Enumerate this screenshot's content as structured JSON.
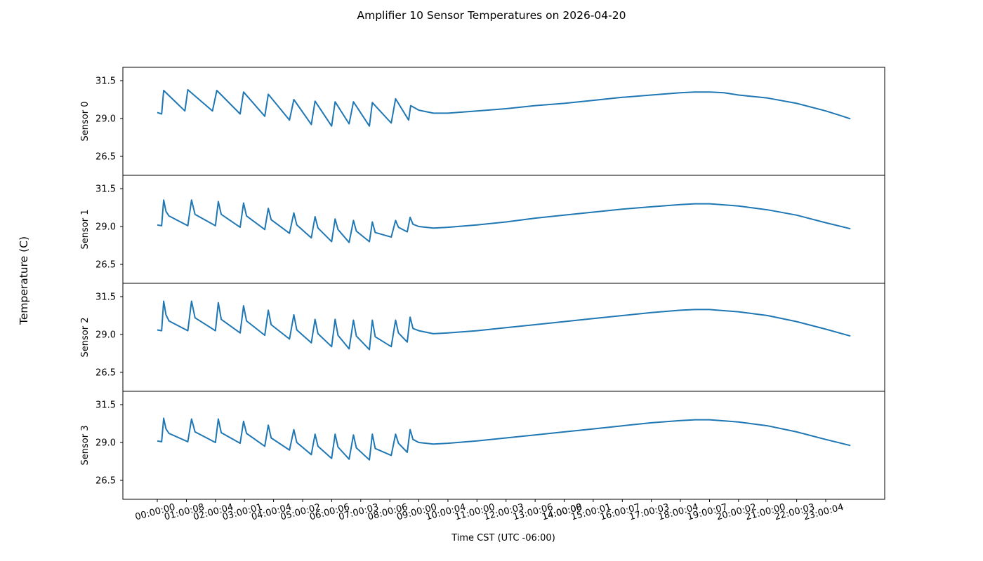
{
  "figure": {
    "title": "Amplifier 10 Sensor Temperatures on 2026-04-20",
    "suptitle_ylabel": "Temperature (C)",
    "xlabel": "Time CST (UTC -06:00)",
    "line_color": "#1f77b4"
  },
  "chart_data": {
    "type": "line",
    "title": "Amplifier 10 Sensor Temperatures on 2026-04-20",
    "xlabel": "Time CST (UTC -06:00)",
    "ylabel": "Temperature (C)",
    "layout": "4 vertically stacked subplots sharing x-axis",
    "ylim": [
      25.25,
      32.38
    ],
    "yticks": [
      26.5,
      29.0,
      31.5
    ],
    "ytick_labels": [
      "26.5",
      "29.0",
      "31.5"
    ],
    "xlim_hours": [
      -1.2,
      25.0
    ],
    "xticks_hours": [
      0,
      1.002,
      2.001,
      3.0,
      4.001,
      5.001,
      6.002,
      7.001,
      8.002,
      9.0,
      10.001,
      11.0,
      12.001,
      13.002,
      14.0,
      14.002,
      15.0,
      16.002,
      17.001,
      18.001,
      19.002,
      20.001,
      21.0,
      22.001,
      23.001
    ],
    "xtick_labels": [
      "00:00:00",
      "01:00:08",
      "02:00:04",
      "03:00:01",
      "04:00:04",
      "05:00:02",
      "06:00:06",
      "07:00:03",
      "08:00:06",
      "09:00:00",
      "10:00:04",
      "11:00:00",
      "12:00:03",
      "13:00:06",
      "14:00:00",
      "14:00:08",
      "15:00:01",
      "16:00:07",
      "17:00:03",
      "18:00:04",
      "19:00:07",
      "20:00:02",
      "21:00:00",
      "22:00:03",
      "23:00:04"
    ],
    "grid": false,
    "legend": null,
    "series": [
      {
        "name": "Sensor 0",
        "ylabel": "Sensor 0",
        "x_hours": [
          0,
          0.15,
          0.22,
          0.95,
          1.05,
          1.9,
          2.05,
          2.85,
          2.97,
          3.7,
          3.82,
          4.55,
          4.7,
          5.3,
          5.43,
          6.0,
          6.12,
          6.6,
          6.75,
          7.3,
          7.4,
          8.05,
          8.2,
          8.65,
          8.72,
          9.0,
          9.5,
          10.0,
          11.0,
          12.0,
          13.0,
          14.0,
          15.0,
          16.0,
          17.0,
          18.0,
          18.5,
          19.0,
          19.5,
          20.0,
          21.0,
          22.0,
          23.0,
          23.5,
          23.85
        ],
        "values": [
          29.4,
          29.3,
          30.85,
          29.5,
          30.9,
          29.5,
          30.85,
          29.3,
          30.75,
          29.15,
          30.6,
          28.9,
          30.25,
          28.6,
          30.15,
          28.5,
          30.1,
          28.65,
          30.1,
          28.5,
          30.05,
          28.7,
          30.3,
          28.9,
          29.85,
          29.55,
          29.35,
          29.35,
          29.5,
          29.65,
          29.85,
          30.0,
          30.2,
          30.4,
          30.55,
          30.7,
          30.75,
          30.75,
          30.7,
          30.55,
          30.35,
          30.0,
          29.5,
          29.2,
          28.98
        ]
      },
      {
        "name": "Sensor 1",
        "ylabel": "Sensor 1",
        "x_hours": [
          0,
          0.15,
          0.22,
          0.3,
          0.4,
          1.05,
          1.18,
          1.3,
          2.0,
          2.1,
          2.2,
          2.85,
          2.97,
          3.07,
          3.7,
          3.82,
          3.92,
          4.55,
          4.7,
          4.8,
          5.3,
          5.43,
          5.53,
          6.0,
          6.12,
          6.22,
          6.6,
          6.75,
          6.85,
          7.3,
          7.4,
          7.5,
          8.05,
          8.2,
          8.3,
          8.6,
          8.7,
          8.8,
          9.0,
          9.5,
          10.0,
          11.0,
          12.0,
          13.0,
          14.0,
          15.0,
          16.0,
          17.0,
          18.0,
          18.5,
          19.0,
          20.0,
          21.0,
          22.0,
          23.0,
          23.85
        ],
        "values": [
          29.1,
          29.05,
          30.75,
          30.0,
          29.7,
          29.05,
          30.75,
          29.8,
          29.05,
          30.65,
          29.8,
          28.95,
          30.55,
          29.7,
          28.8,
          30.2,
          29.45,
          28.55,
          29.9,
          29.1,
          28.25,
          29.65,
          28.9,
          28.0,
          29.5,
          28.8,
          27.95,
          29.4,
          28.7,
          28.0,
          29.3,
          28.6,
          28.3,
          29.4,
          28.95,
          28.65,
          29.6,
          29.15,
          29.0,
          28.9,
          28.95,
          29.1,
          29.3,
          29.55,
          29.75,
          29.95,
          30.15,
          30.3,
          30.45,
          30.5,
          30.5,
          30.35,
          30.1,
          29.75,
          29.25,
          28.85
        ]
      },
      {
        "name": "Sensor 2",
        "ylabel": "Sensor 2",
        "x_hours": [
          0,
          0.15,
          0.22,
          0.3,
          0.4,
          1.05,
          1.18,
          1.3,
          2.0,
          2.1,
          2.2,
          2.85,
          2.97,
          3.07,
          3.7,
          3.82,
          3.92,
          4.55,
          4.7,
          4.8,
          5.3,
          5.43,
          5.53,
          6.0,
          6.12,
          6.22,
          6.6,
          6.75,
          6.85,
          7.3,
          7.4,
          7.5,
          8.05,
          8.2,
          8.3,
          8.6,
          8.7,
          8.8,
          9.0,
          9.5,
          10.0,
          11.0,
          12.0,
          13.0,
          14.0,
          15.0,
          16.0,
          17.0,
          18.0,
          18.5,
          19.0,
          20.0,
          21.0,
          22.0,
          23.0,
          23.85
        ],
        "values": [
          29.3,
          29.25,
          31.2,
          30.3,
          29.9,
          29.25,
          31.2,
          30.1,
          29.25,
          31.1,
          30.0,
          29.1,
          30.9,
          29.9,
          28.95,
          30.6,
          29.65,
          28.7,
          30.3,
          29.3,
          28.45,
          30.0,
          29.05,
          28.2,
          30.0,
          28.95,
          28.05,
          29.95,
          28.9,
          28.0,
          29.95,
          28.85,
          28.2,
          29.95,
          29.1,
          28.5,
          30.15,
          29.4,
          29.25,
          29.05,
          29.1,
          29.25,
          29.45,
          29.65,
          29.85,
          30.05,
          30.25,
          30.45,
          30.6,
          30.65,
          30.65,
          30.5,
          30.25,
          29.85,
          29.35,
          28.9
        ]
      },
      {
        "name": "Sensor 3",
        "ylabel": "Sensor 3",
        "x_hours": [
          0,
          0.15,
          0.22,
          0.3,
          0.4,
          1.05,
          1.18,
          1.3,
          2.0,
          2.1,
          2.2,
          2.85,
          2.97,
          3.07,
          3.7,
          3.82,
          3.92,
          4.55,
          4.7,
          4.8,
          5.3,
          5.43,
          5.53,
          6.0,
          6.12,
          6.22,
          6.6,
          6.75,
          6.85,
          7.3,
          7.4,
          7.5,
          8.05,
          8.2,
          8.3,
          8.6,
          8.7,
          8.8,
          9.0,
          9.5,
          10.0,
          11.0,
          12.0,
          13.0,
          14.0,
          15.0,
          16.0,
          17.0,
          18.0,
          18.5,
          19.0,
          20.0,
          21.0,
          22.0,
          23.0,
          23.85
        ],
        "values": [
          29.1,
          29.05,
          30.6,
          29.9,
          29.6,
          29.05,
          30.55,
          29.7,
          29.0,
          30.55,
          29.65,
          28.95,
          30.4,
          29.6,
          28.75,
          30.15,
          29.3,
          28.5,
          29.85,
          29.0,
          28.2,
          29.55,
          28.75,
          27.95,
          29.55,
          28.7,
          27.9,
          29.5,
          28.65,
          27.85,
          29.55,
          28.6,
          28.15,
          29.55,
          28.95,
          28.35,
          29.85,
          29.2,
          29.0,
          28.9,
          28.95,
          29.1,
          29.3,
          29.5,
          29.7,
          29.9,
          30.1,
          30.3,
          30.45,
          30.5,
          30.5,
          30.35,
          30.1,
          29.7,
          29.2,
          28.8
        ]
      }
    ]
  }
}
